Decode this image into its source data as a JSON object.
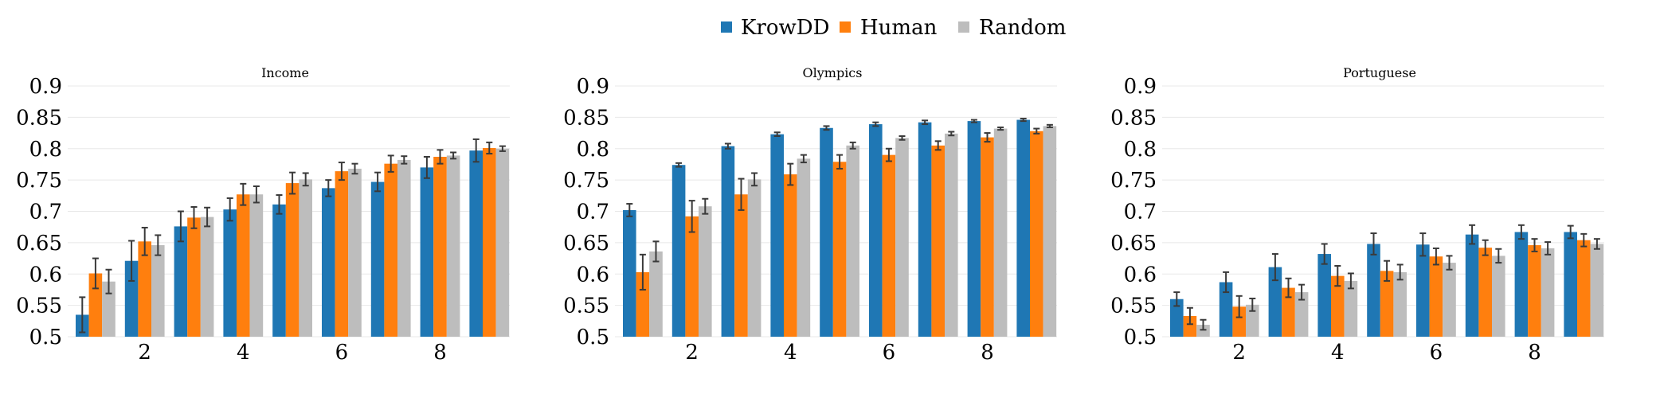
{
  "legend": [
    {
      "name": "KrowDD",
      "color": "#1f77b4"
    },
    {
      "name": "Human",
      "color": "#ff7f0e"
    },
    {
      "name": "Random",
      "color": "#bdbdbd"
    }
  ],
  "chart_data": [
    {
      "type": "bar",
      "title": "Income",
      "x": [
        1,
        2,
        3,
        4,
        5,
        6,
        7,
        8,
        9
      ],
      "xticks": [
        "2",
        "4",
        "6",
        "8"
      ],
      "ylim": [
        0.5,
        0.9
      ],
      "yticks": [
        "0.5",
        "0.55",
        "0.6",
        "0.65",
        "0.7",
        "0.75",
        "0.8",
        "0.85",
        "0.9"
      ],
      "grid": true,
      "series": [
        {
          "name": "KrowDD",
          "values": [
            0.535,
            0.621,
            0.676,
            0.703,
            0.711,
            0.737,
            0.747,
            0.77,
            0.797
          ],
          "errors": [
            0.028,
            0.032,
            0.024,
            0.018,
            0.015,
            0.013,
            0.015,
            0.017,
            0.018
          ]
        },
        {
          "name": "Human",
          "values": [
            0.601,
            0.652,
            0.69,
            0.727,
            0.745,
            0.764,
            0.776,
            0.787,
            0.801
          ],
          "errors": [
            0.024,
            0.022,
            0.017,
            0.017,
            0.017,
            0.014,
            0.013,
            0.011,
            0.009
          ]
        },
        {
          "name": "Random",
          "values": [
            0.588,
            0.646,
            0.691,
            0.727,
            0.751,
            0.768,
            0.782,
            0.789,
            0.8
          ],
          "errors": [
            0.019,
            0.016,
            0.015,
            0.013,
            0.01,
            0.008,
            0.006,
            0.005,
            0.004
          ]
        }
      ]
    },
    {
      "type": "bar",
      "title": "Olympics",
      "x": [
        1,
        2,
        3,
        4,
        5,
        6,
        7,
        8,
        9
      ],
      "xticks": [
        "2",
        "4",
        "6",
        "8"
      ],
      "ylim": [
        0.5,
        0.9
      ],
      "yticks": [
        "0.5",
        "0.55",
        "0.6",
        "0.65",
        "0.7",
        "0.75",
        "0.8",
        "0.85",
        "0.9"
      ],
      "grid": true,
      "series": [
        {
          "name": "KrowDD",
          "values": [
            0.702,
            0.774,
            0.804,
            0.823,
            0.833,
            0.839,
            0.842,
            0.844,
            0.846
          ],
          "errors": [
            0.01,
            0.003,
            0.004,
            0.003,
            0.003,
            0.003,
            0.003,
            0.002,
            0.002
          ]
        },
        {
          "name": "Human",
          "values": [
            0.603,
            0.692,
            0.727,
            0.759,
            0.779,
            0.79,
            0.805,
            0.818,
            0.828
          ],
          "errors": [
            0.028,
            0.025,
            0.025,
            0.017,
            0.011,
            0.01,
            0.007,
            0.007,
            0.004
          ]
        },
        {
          "name": "Random",
          "values": [
            0.636,
            0.708,
            0.751,
            0.784,
            0.805,
            0.817,
            0.824,
            0.832,
            0.836
          ],
          "errors": [
            0.016,
            0.012,
            0.01,
            0.006,
            0.005,
            0.003,
            0.003,
            0.002,
            0.002
          ]
        }
      ]
    },
    {
      "type": "bar",
      "title": "Portuguese",
      "x": [
        1,
        2,
        3,
        4,
        5,
        6,
        7,
        8,
        9
      ],
      "xticks": [
        "2",
        "4",
        "6",
        "8"
      ],
      "ylim": [
        0.5,
        0.9
      ],
      "yticks": [
        "0.5",
        "0.55",
        "0.6",
        "0.65",
        "0.7",
        "0.75",
        "0.8",
        "0.85",
        "0.9"
      ],
      "grid": true,
      "series": [
        {
          "name": "KrowDD",
          "values": [
            0.56,
            0.587,
            0.611,
            0.632,
            0.648,
            0.647,
            0.663,
            0.667,
            0.667
          ],
          "errors": [
            0.011,
            0.016,
            0.021,
            0.016,
            0.017,
            0.018,
            0.015,
            0.011,
            0.01
          ]
        },
        {
          "name": "Human",
          "values": [
            0.533,
            0.548,
            0.578,
            0.597,
            0.605,
            0.628,
            0.642,
            0.646,
            0.654
          ],
          "errors": [
            0.013,
            0.017,
            0.015,
            0.016,
            0.016,
            0.013,
            0.012,
            0.01,
            0.01
          ]
        },
        {
          "name": "Random",
          "values": [
            0.519,
            0.551,
            0.571,
            0.589,
            0.603,
            0.618,
            0.629,
            0.641,
            0.648
          ],
          "errors": [
            0.008,
            0.01,
            0.012,
            0.012,
            0.012,
            0.011,
            0.011,
            0.01,
            0.008
          ]
        }
      ]
    }
  ]
}
